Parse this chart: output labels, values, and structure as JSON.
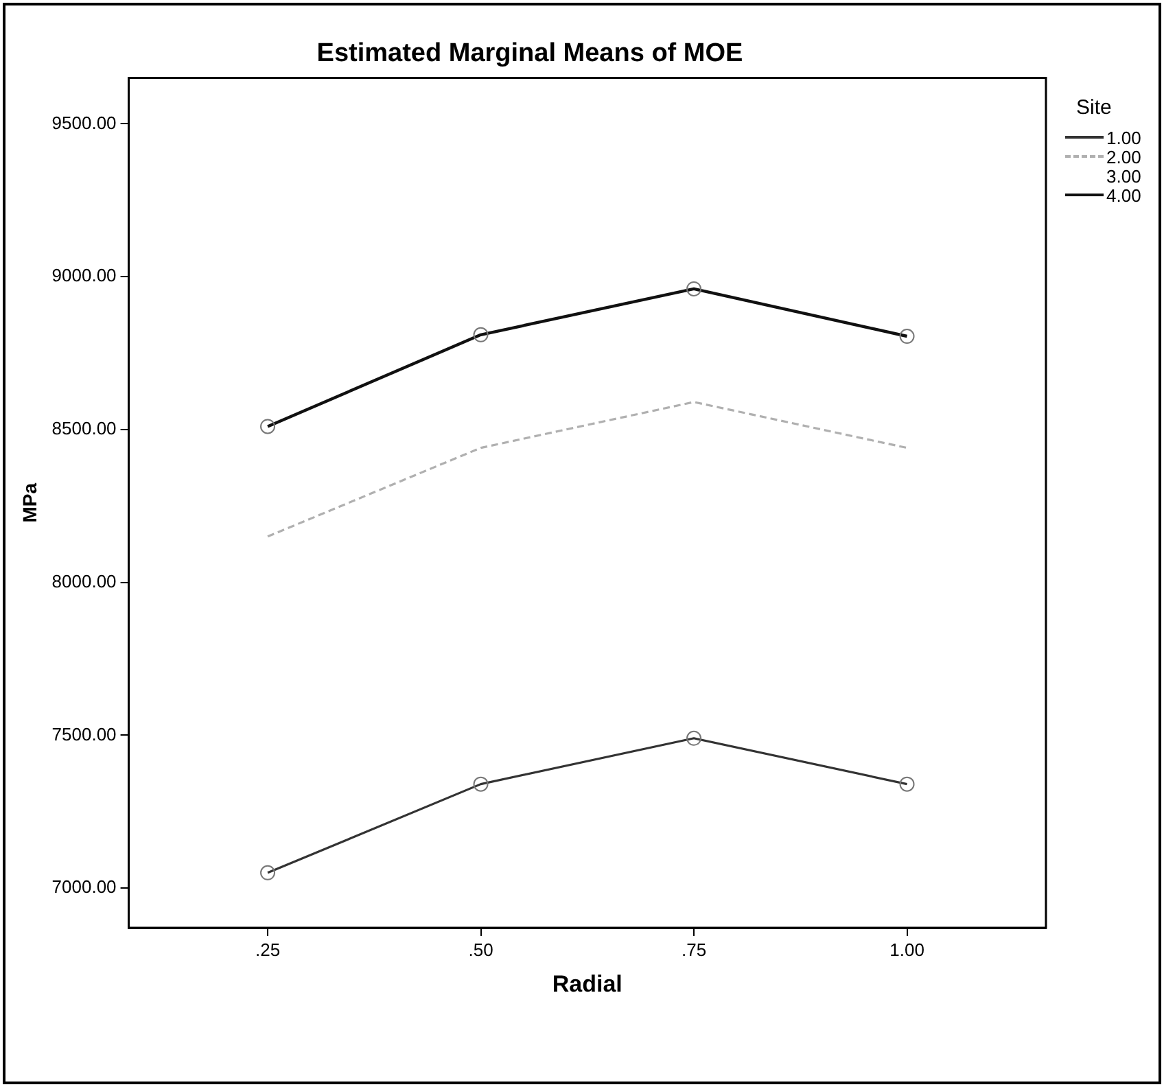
{
  "chart_data": {
    "type": "line",
    "title": "Estimated Marginal Means of MOE",
    "xlabel": "Radial",
    "ylabel": "MPa",
    "legend_title": "Site",
    "legend": "right",
    "x": [
      0.25,
      0.5,
      0.75,
      1.0
    ],
    "series": [
      {
        "name": "1.00",
        "color": "#333333",
        "values": [
          7050,
          7340,
          7490,
          7340
        ],
        "marker": "circle",
        "line_style": "solid"
      },
      {
        "name": "2.00",
        "color": "#b0b0b0",
        "values": [
          8150,
          8440,
          8590,
          8440
        ],
        "marker": "none",
        "line_style": "dashed"
      },
      {
        "name": "3.00",
        "values": [
          null,
          null,
          null,
          null
        ],
        "marker": "none",
        "line_style": "solid"
      },
      {
        "name": "4.00",
        "color": "#111111",
        "values": [
          8510,
          8810,
          8960,
          8805
        ],
        "marker": "circle",
        "line_style": "solid"
      }
    ],
    "xlim": [
      0.087,
      1.163
    ],
    "xticks": [
      {
        "value": 0.25,
        "label": ".25"
      },
      {
        "value": 0.5,
        "label": ".50"
      },
      {
        "value": 0.75,
        "label": ".75"
      },
      {
        "value": 1.0,
        "label": "1.00"
      }
    ],
    "ylim": [
      6870,
      9650
    ],
    "yticks": [
      {
        "value": 7000,
        "label": "7000.00"
      },
      {
        "value": 7500,
        "label": "7500.00"
      },
      {
        "value": 8000,
        "label": "8000.00"
      },
      {
        "value": 8500,
        "label": "8500.00"
      },
      {
        "value": 9000,
        "label": "9000.00"
      },
      {
        "value": 9500,
        "label": "9500.00"
      }
    ],
    "grid": false
  }
}
